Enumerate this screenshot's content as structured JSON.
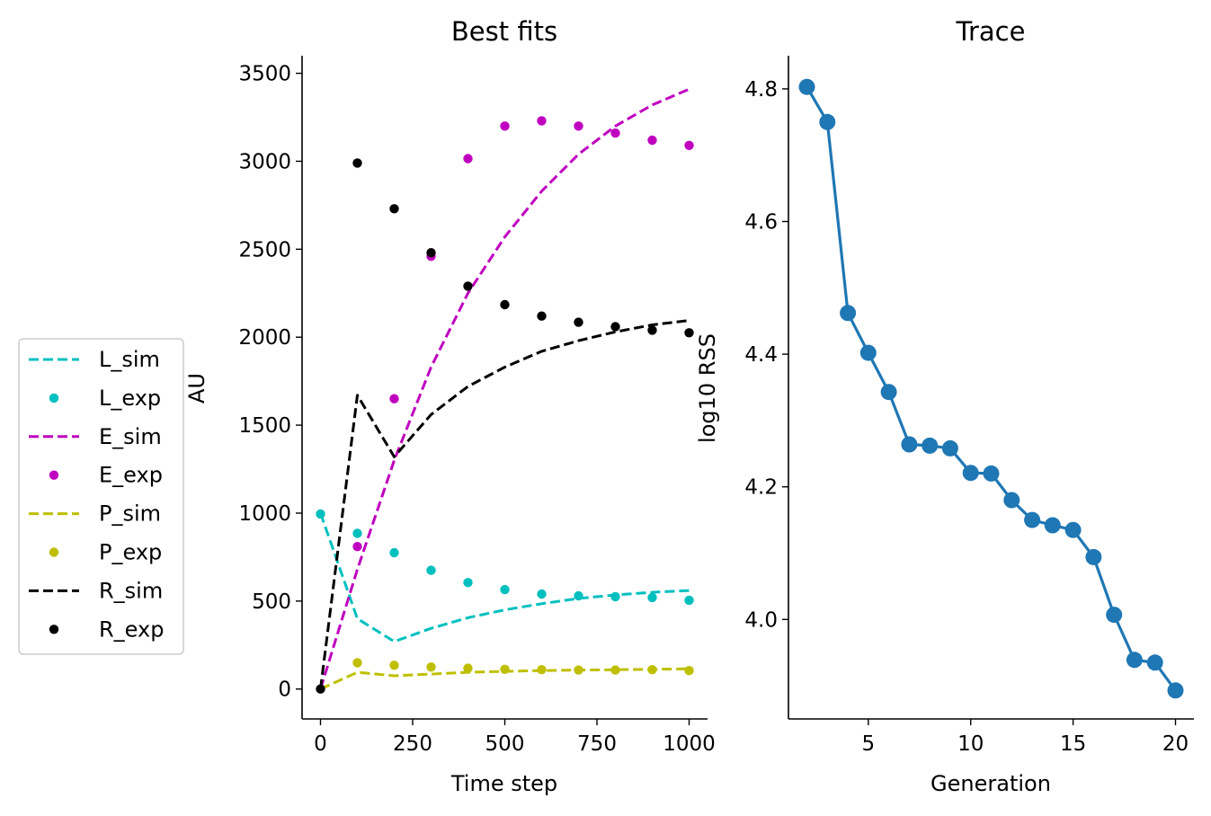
{
  "chart_data": [
    {
      "type": "line",
      "title": "Best fits",
      "xlabel": "Time step",
      "ylabel": "AU",
      "xlim": [
        -50,
        1050
      ],
      "ylim": [
        -170,
        3600
      ],
      "xticks": [
        0,
        250,
        500,
        750,
        1000
      ],
      "yticks": [
        0,
        500,
        1000,
        1500,
        2000,
        2500,
        3000,
        3500
      ],
      "legend_position": "left-outside",
      "series": [
        {
          "name": "L_sim",
          "style": "dashed",
          "color": "#00bfbf",
          "x": [
            0,
            100,
            200,
            300,
            400,
            500,
            600,
            700,
            800,
            900,
            1000
          ],
          "y": [
            1000,
            400,
            270,
            345,
            405,
            450,
            485,
            515,
            535,
            550,
            560
          ]
        },
        {
          "name": "L_exp",
          "style": "dots",
          "color": "#00bfbf",
          "x": [
            0,
            100,
            200,
            300,
            400,
            500,
            600,
            700,
            800,
            900,
            1000
          ],
          "y": [
            995,
            885,
            775,
            675,
            605,
            565,
            540,
            530,
            525,
            520,
            505
          ]
        },
        {
          "name": "E_sim",
          "style": "dashed",
          "color": "#bf00bf",
          "x": [
            0,
            100,
            200,
            300,
            400,
            500,
            600,
            700,
            800,
            900,
            1000
          ],
          "y": [
            0,
            680,
            1300,
            1830,
            2250,
            2570,
            2830,
            3040,
            3200,
            3320,
            3410
          ]
        },
        {
          "name": "E_exp",
          "style": "dots",
          "color": "#bf00bf",
          "x": [
            100,
            200,
            300,
            400,
            500,
            600,
            700,
            800,
            900,
            1000
          ],
          "y": [
            810,
            1650,
            2460,
            3015,
            3200,
            3230,
            3200,
            3160,
            3120,
            3090
          ]
        },
        {
          "name": "P_sim",
          "style": "dashed",
          "color": "#bfbf00",
          "x": [
            0,
            100,
            200,
            300,
            400,
            500,
            600,
            700,
            800,
            900,
            1000
          ],
          "y": [
            0,
            95,
            75,
            85,
            95,
            100,
            105,
            108,
            110,
            112,
            115
          ]
        },
        {
          "name": "P_exp",
          "style": "dots",
          "color": "#bfbf00",
          "x": [
            100,
            200,
            300,
            400,
            500,
            600,
            700,
            800,
            900,
            1000
          ],
          "y": [
            150,
            135,
            125,
            118,
            112,
            110,
            108,
            108,
            110,
            105
          ]
        },
        {
          "name": "R_sim",
          "style": "dashed",
          "color": "#000000",
          "x": [
            0,
            100,
            200,
            300,
            400,
            500,
            600,
            700,
            800,
            900,
            1000
          ],
          "y": [
            0,
            1670,
            1320,
            1560,
            1720,
            1830,
            1920,
            1980,
            2030,
            2070,
            2095
          ]
        },
        {
          "name": "R_exp",
          "style": "dots",
          "color": "#000000",
          "x": [
            0,
            100,
            200,
            300,
            400,
            500,
            600,
            700,
            800,
            900,
            1000
          ],
          "y": [
            0,
            2990,
            2730,
            2480,
            2290,
            2185,
            2120,
            2085,
            2060,
            2040,
            2025
          ]
        }
      ]
    },
    {
      "type": "line",
      "title": "Trace",
      "xlabel": "Generation",
      "ylabel": "log10 RSS",
      "xlim": [
        1.1,
        20.9
      ],
      "ylim": [
        3.85,
        4.85
      ],
      "xticks": [
        5,
        10,
        15,
        20
      ],
      "yticks": [
        4.0,
        4.2,
        4.4,
        4.6,
        4.8
      ],
      "ytick_labels": [
        "4.0",
        "4.2",
        "4.4",
        "4.6",
        "4.8"
      ],
      "series": [
        {
          "style": "line-markers",
          "color": "#1f77b4",
          "x": [
            2,
            3,
            4,
            5,
            6,
            7,
            8,
            9,
            10,
            11,
            12,
            13,
            14,
            15,
            16,
            17,
            18,
            19,
            20
          ],
          "y": [
            4.803,
            4.75,
            4.462,
            4.402,
            4.343,
            4.264,
            4.262,
            4.258,
            4.221,
            4.22,
            4.18,
            4.15,
            4.142,
            4.135,
            4.094,
            4.007,
            3.939,
            3.935,
            3.893
          ]
        }
      ]
    }
  ]
}
